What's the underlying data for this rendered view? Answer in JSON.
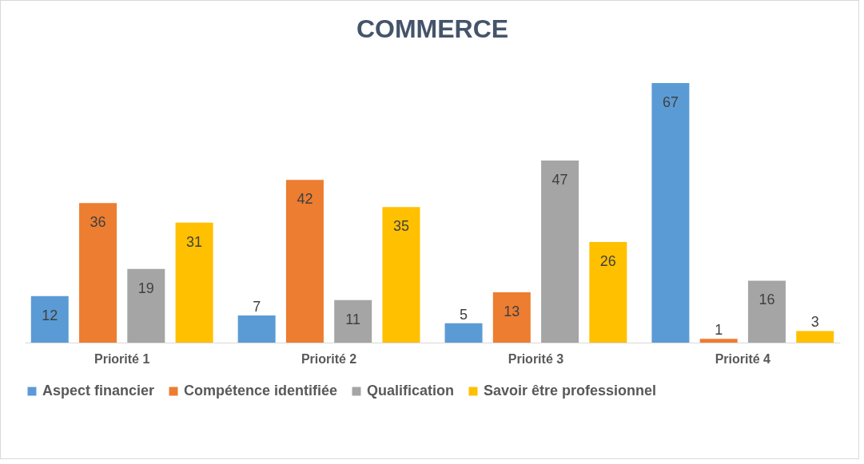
{
  "chart_data": {
    "type": "bar",
    "title": "COMMERCE",
    "categories": [
      "Priorité 1",
      "Priorité 2",
      "Priorité 3",
      "Priorité 4"
    ],
    "series": [
      {
        "name": "Aspect financier",
        "color": "#5b9bd5",
        "values": [
          12,
          7,
          5,
          67
        ]
      },
      {
        "name": "Compétence identifiée",
        "color": "#ed7d31",
        "values": [
          36,
          42,
          13,
          1
        ]
      },
      {
        "name": "Qualification",
        "color": "#a5a5a5",
        "values": [
          19,
          11,
          47,
          16
        ]
      },
      {
        "name": "Savoir être professionnel",
        "color": "#ffc000",
        "values": [
          31,
          35,
          26,
          3
        ]
      }
    ],
    "data_labels": true,
    "legend": "bottom"
  }
}
